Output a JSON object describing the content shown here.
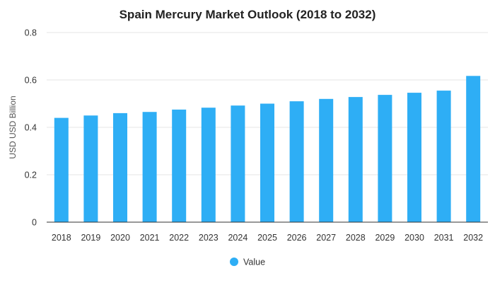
{
  "chart_data": {
    "type": "bar",
    "title": "Spain Mercury Market Outlook (2018 to 2032)",
    "xlabel": "",
    "ylabel": "USD USD Billion",
    "categories": [
      "2018",
      "2019",
      "2020",
      "2021",
      "2022",
      "2023",
      "2024",
      "2025",
      "2026",
      "2027",
      "2028",
      "2029",
      "2030",
      "2031",
      "2032"
    ],
    "series": [
      {
        "name": "Value",
        "color": "#2eaef5",
        "values": [
          0.44,
          0.45,
          0.46,
          0.465,
          0.475,
          0.483,
          0.492,
          0.5,
          0.51,
          0.52,
          0.528,
          0.537,
          0.546,
          0.555,
          0.617
        ]
      }
    ],
    "ylim": [
      0,
      0.8
    ],
    "yticks": [
      "0",
      "0.2",
      "0.4",
      "0.6",
      "0.8"
    ],
    "ytick_values": [
      0,
      0.2,
      0.4,
      0.6,
      0.8
    ],
    "grid": true,
    "legend": "bottom-center"
  }
}
